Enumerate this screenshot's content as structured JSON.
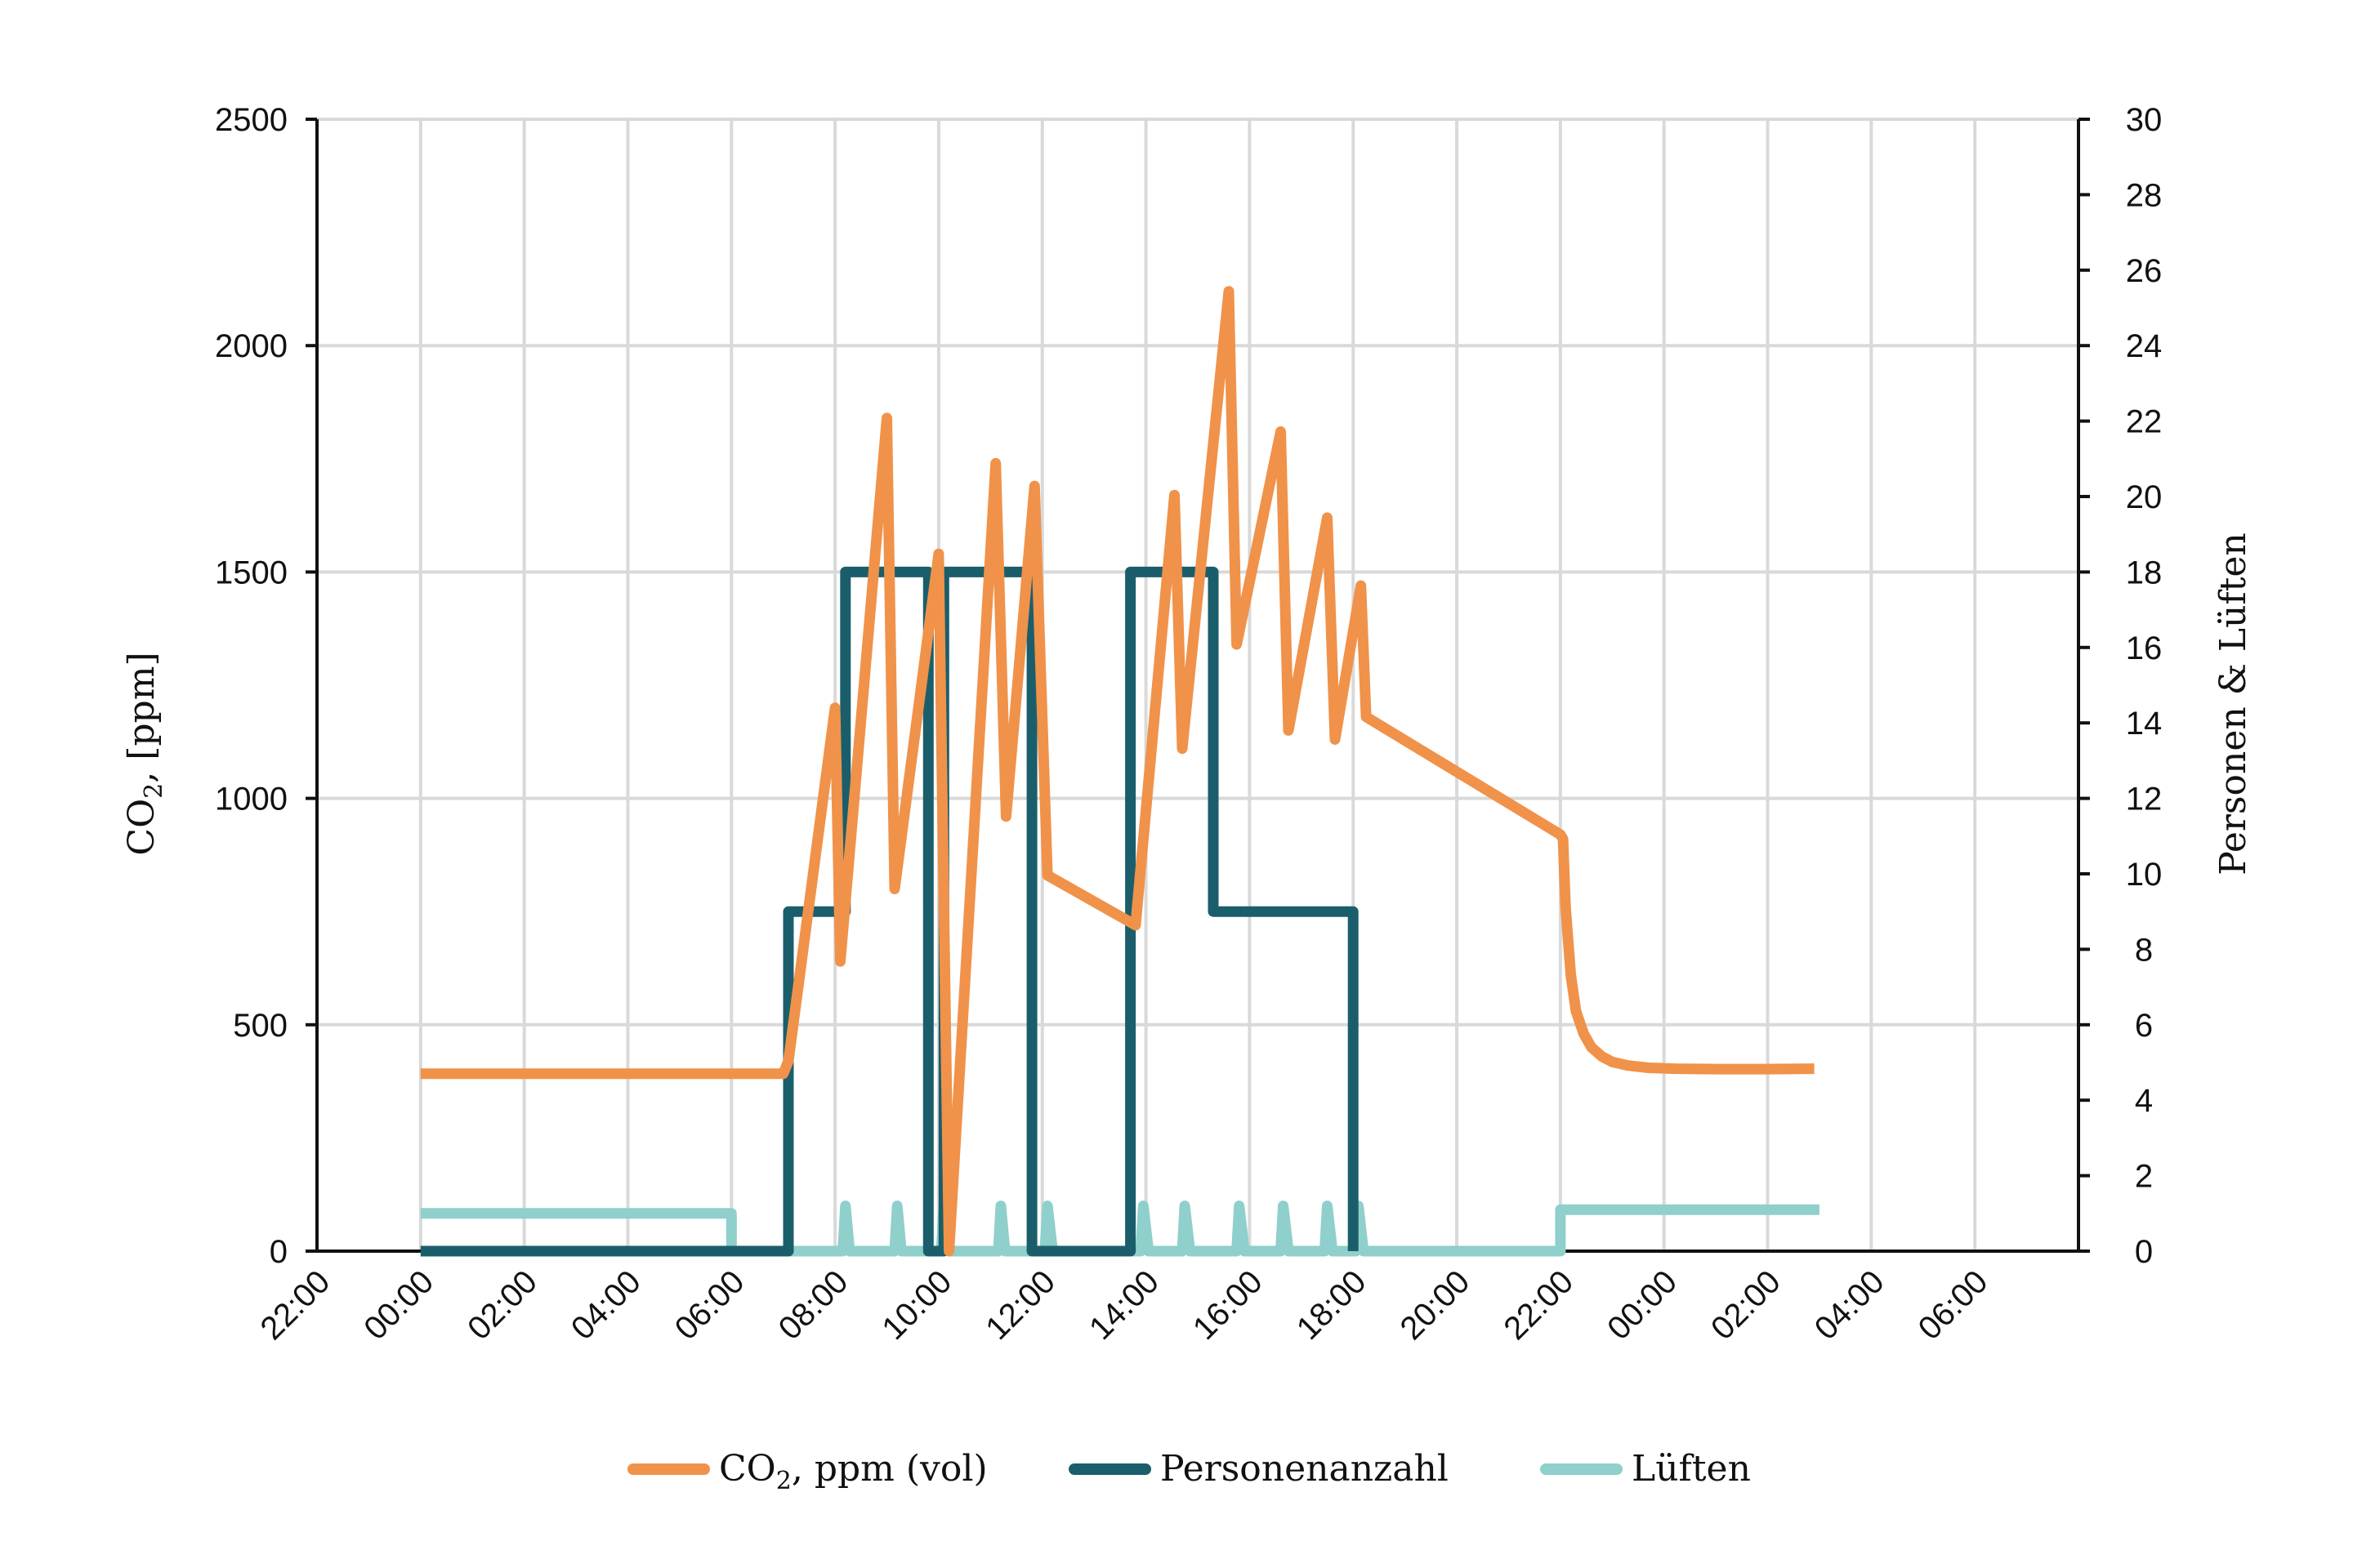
{
  "chart_data": {
    "type": "line",
    "title": "",
    "x_axis": {
      "unit": "time (hh:mm)",
      "tick_labels": [
        "22:00",
        "00:00",
        "02:00",
        "04:00",
        "06:00",
        "08:00",
        "10:00",
        "12:00",
        "14:00",
        "16:00",
        "18:00",
        "20:00",
        "22:00",
        "00:00",
        "02:00",
        "04:00",
        "06:00"
      ],
      "range_hours": [
        -2,
        32
      ],
      "grid": true
    },
    "y_left": {
      "label_main": "CO",
      "label_sub": "2",
      "label_rest": ", [ppm]",
      "range": [
        0,
        2500
      ],
      "ticks": [
        0,
        500,
        1000,
        1500,
        2000,
        2500
      ]
    },
    "y_right": {
      "label": "Personen & Lüften",
      "range": [
        0,
        30
      ],
      "ticks": [
        0,
        2,
        4,
        6,
        8,
        10,
        12,
        14,
        16,
        18,
        20,
        22,
        24,
        26,
        28,
        30
      ]
    },
    "legend_position": "bottom",
    "series": [
      {
        "name_main": "CO",
        "name_sub": "2",
        "name_rest": ", ppm (vol)",
        "axis": "left",
        "color": "#f0924a",
        "points": [
          [
            0,
            392
          ],
          [
            7,
            392
          ],
          [
            7.1,
            420
          ],
          [
            8.0,
            1200
          ],
          [
            8.1,
            640
          ],
          [
            9.0,
            1840
          ],
          [
            9.15,
            800
          ],
          [
            10.0,
            1540
          ],
          [
            10.2,
            0
          ],
          [
            11.1,
            1740
          ],
          [
            11.3,
            960
          ],
          [
            11.85,
            1690
          ],
          [
            12.1,
            830
          ],
          [
            13.8,
            720
          ],
          [
            14.55,
            1670
          ],
          [
            14.7,
            1110
          ],
          [
            15.6,
            2120
          ],
          [
            15.75,
            1340
          ],
          [
            16.6,
            1810
          ],
          [
            16.75,
            1150
          ],
          [
            17.5,
            1620
          ],
          [
            17.65,
            1130
          ],
          [
            18.15,
            1470
          ],
          [
            18.25,
            1180
          ],
          [
            22.0,
            920
          ],
          [
            22.05,
            910
          ],
          [
            22.1,
            760
          ],
          [
            22.2,
            610
          ],
          [
            22.3,
            530
          ],
          [
            22.45,
            480
          ],
          [
            22.6,
            450
          ],
          [
            22.8,
            430
          ],
          [
            23.0,
            418
          ],
          [
            23.3,
            410
          ],
          [
            23.7,
            405
          ],
          [
            24.2,
            403
          ],
          [
            25.0,
            402
          ],
          [
            26.0,
            402
          ],
          [
            26.9,
            403
          ]
        ]
      },
      {
        "name": "Personenanzahl",
        "axis": "right",
        "color": "#1b5e6b",
        "points": [
          [
            0,
            0
          ],
          [
            7.1,
            0
          ],
          [
            7.1,
            9
          ],
          [
            8.2,
            9
          ],
          [
            8.2,
            18
          ],
          [
            9.8,
            18
          ],
          [
            9.8,
            0
          ],
          [
            10.1,
            0
          ],
          [
            10.1,
            18
          ],
          [
            11.8,
            18
          ],
          [
            11.8,
            0
          ],
          [
            13.7,
            0
          ],
          [
            13.7,
            18
          ],
          [
            15.3,
            18
          ],
          [
            15.3,
            9
          ],
          [
            18.0,
            9
          ],
          [
            18.0,
            0
          ]
        ]
      },
      {
        "name": "Lüften",
        "axis": "right",
        "color": "#8fcfcc",
        "points": [
          [
            0,
            1
          ],
          [
            6.0,
            1
          ],
          [
            6.0,
            0
          ],
          [
            8.15,
            0
          ],
          [
            8.2,
            1.2
          ],
          [
            8.28,
            0
          ],
          [
            9.15,
            0
          ],
          [
            9.2,
            1.2
          ],
          [
            9.28,
            0
          ],
          [
            10.05,
            0
          ],
          [
            10.1,
            1.2
          ],
          [
            10.2,
            0
          ],
          [
            11.15,
            0
          ],
          [
            11.2,
            1.2
          ],
          [
            11.28,
            0
          ],
          [
            12.05,
            0
          ],
          [
            12.1,
            1.2
          ],
          [
            12.2,
            0
          ],
          [
            13.9,
            0
          ],
          [
            13.95,
            1.2
          ],
          [
            14.05,
            0
          ],
          [
            14.7,
            0
          ],
          [
            14.75,
            1.2
          ],
          [
            14.85,
            0
          ],
          [
            15.75,
            0
          ],
          [
            15.8,
            1.2
          ],
          [
            15.9,
            0
          ],
          [
            16.6,
            0
          ],
          [
            16.65,
            1.2
          ],
          [
            16.75,
            0
          ],
          [
            17.45,
            0
          ],
          [
            17.5,
            1.2
          ],
          [
            17.6,
            0
          ],
          [
            18.05,
            0
          ],
          [
            18.1,
            1.2
          ],
          [
            18.2,
            0
          ],
          [
            22.0,
            0
          ],
          [
            22.0,
            1.1
          ],
          [
            27.0,
            1.1
          ]
        ]
      }
    ]
  }
}
